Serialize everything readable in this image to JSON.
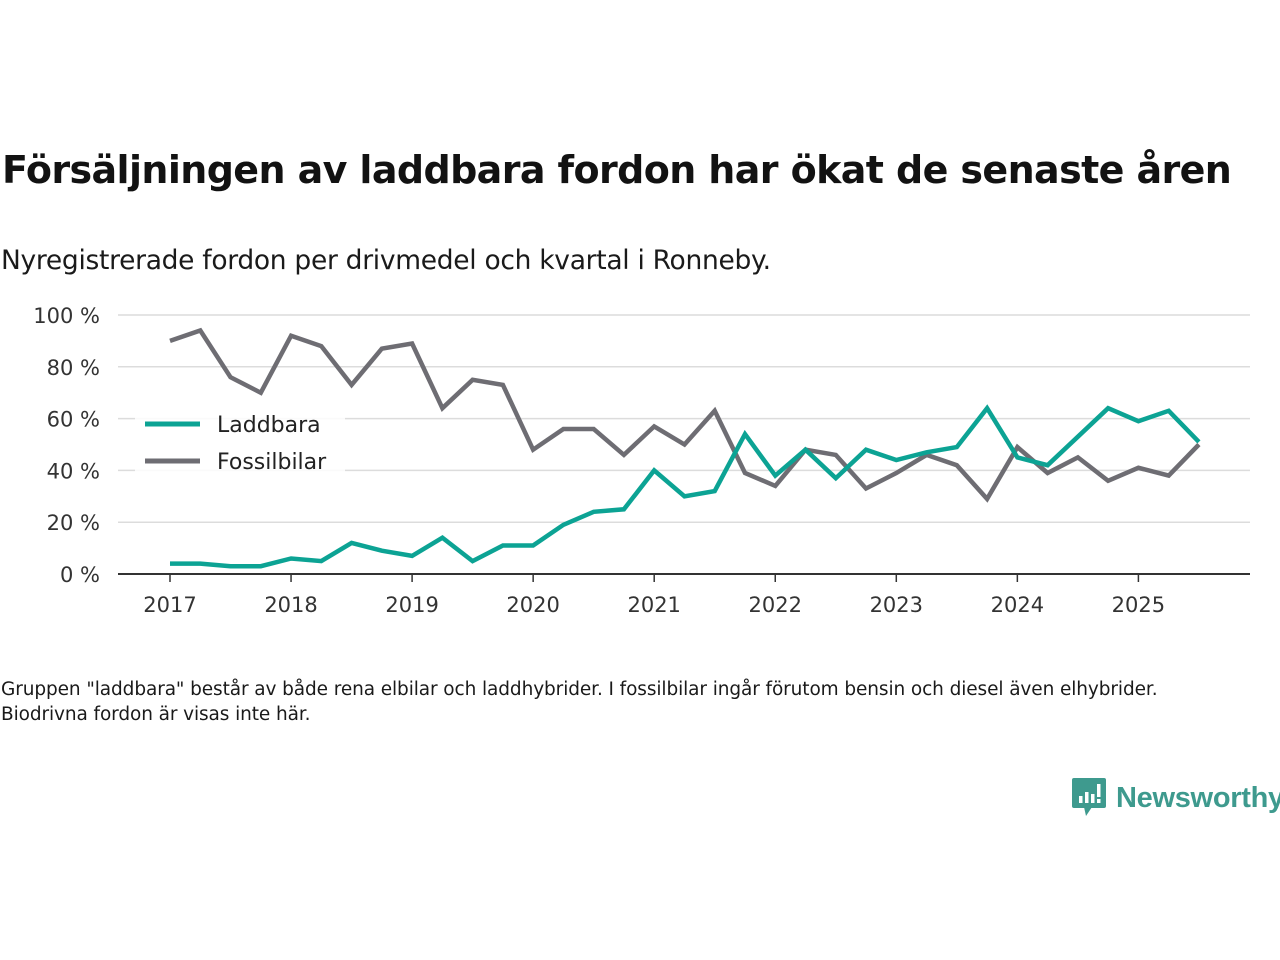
{
  "header": {
    "title": "Försäljningen av laddbara fordon har ökat de senaste åren",
    "subtitle": "Nyregistrerade fordon per drivmedel och kvartal i Ronneby."
  },
  "footnote": "Gruppen \"laddbara\" består av både rena elbilar och laddhybrider. I fossilbilar ingår förutom bensin och diesel även elhybrider. Biodrivna fordon är visas inte här.",
  "brand": {
    "name": "Newsworthy",
    "icon": "bar-chart-speech-bubble-icon",
    "color": "#3e9a8e"
  },
  "chart_data": {
    "type": "line",
    "title": "Försäljningen av laddbara fordon har ökat de senaste åren",
    "subtitle": "Nyregistrerade fordon per drivmedel och kvartal i Ronneby.",
    "xlabel": "",
    "ylabel": "",
    "x_start": 2017.0,
    "x_step": 0.25,
    "x_ticks": [
      2017,
      2018,
      2019,
      2020,
      2021,
      2022,
      2023,
      2024,
      2025
    ],
    "x_tick_labels": [
      "2017",
      "2018",
      "2019",
      "2020",
      "2021",
      "2022",
      "2023",
      "2024",
      "2025"
    ],
    "xlim": [
      2016.6,
      2025.9
    ],
    "ylim": [
      0,
      100
    ],
    "y_ticks": [
      0,
      20,
      40,
      60,
      80,
      100
    ],
    "y_tick_labels": [
      "0 %",
      "20 %",
      "40 %",
      "60 %",
      "80 %",
      "100 %"
    ],
    "grid": true,
    "legend_position": "left-middle",
    "series": [
      {
        "name": "Laddbara",
        "color": "#0ca394",
        "values": [
          4,
          4,
          3,
          3,
          6,
          5,
          12,
          9,
          7,
          14,
          5,
          11,
          11,
          19,
          24,
          25,
          40,
          30,
          32,
          54,
          38,
          48,
          37,
          48,
          44,
          47,
          49,
          64,
          45,
          42,
          53,
          64,
          59,
          63,
          51
        ]
      },
      {
        "name": "Fossilbilar",
        "color": "#6e6d73",
        "values": [
          90,
          94,
          76,
          70,
          92,
          88,
          73,
          87,
          89,
          64,
          75,
          73,
          48,
          56,
          56,
          46,
          57,
          50,
          63,
          39,
          34,
          48,
          46,
          33,
          39,
          46,
          42,
          29,
          49,
          39,
          45,
          36,
          41,
          38,
          50
        ]
      }
    ]
  }
}
